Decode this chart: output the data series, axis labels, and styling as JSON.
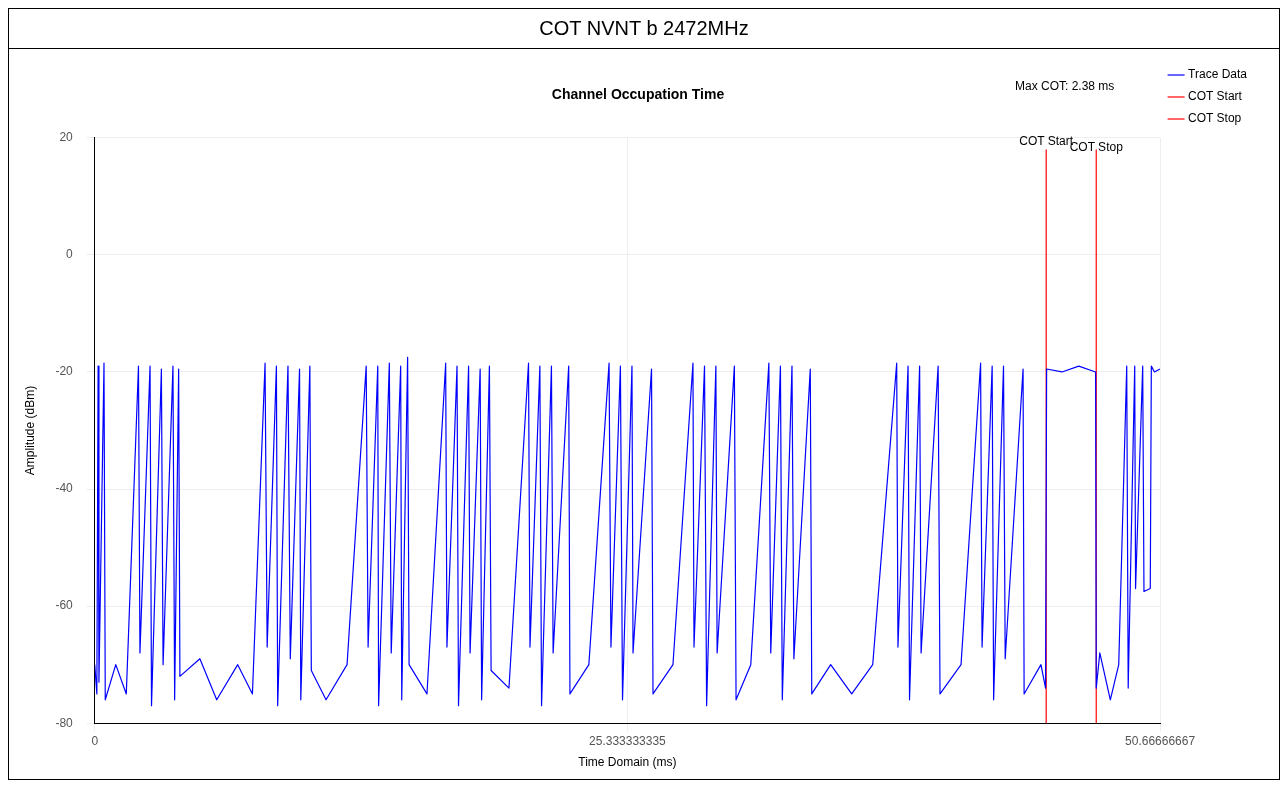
{
  "chart_data": {
    "type": "line",
    "title": "COT NVNT b 2472MHz",
    "subtitle": "Channel Occupation Time",
    "xlabel": "Time Domain (ms)",
    "ylabel": "Amplitude (dBm)",
    "xlim": [
      0,
      50.66666667
    ],
    "xticks": [
      0,
      25.333333335,
      50.66666667
    ],
    "ylim": [
      -80,
      20
    ],
    "yticks": [
      -80,
      -60,
      -40,
      -20,
      0,
      20
    ],
    "grid": true,
    "legend": "right",
    "marker": "none",
    "line_style": "solid",
    "series": [
      {
        "name": "Trace Data",
        "color": "#0000ff",
        "x": [
          0,
          0.1,
          0.16,
          0.2,
          0.44,
          0.5,
          1.0,
          1.5,
          2.08,
          2.15,
          2.63,
          2.7,
          3.17,
          3.25,
          3.72,
          3.8,
          3.99,
          4.05,
          5.0,
          5.8,
          6.8,
          7.5,
          8.1,
          8.2,
          8.64,
          8.7,
          9.19,
          9.3,
          9.74,
          9.8,
          10.23,
          10.3,
          11.0,
          12.0,
          12.91,
          13.0,
          13.46,
          13.5,
          14.01,
          14.1,
          14.55,
          14.6,
          14.88,
          14.95,
          15.8,
          16.69,
          16.75,
          17.23,
          17.3,
          17.78,
          17.85,
          18.33,
          18.4,
          18.77,
          18.85,
          19.7,
          20.63,
          20.7,
          21.17,
          21.25,
          21.72,
          21.8,
          22.54,
          22.6,
          23.5,
          24.46,
          24.55,
          25.0,
          25.1,
          25.55,
          25.6,
          26.48,
          26.55,
          27.5,
          28.45,
          28.5,
          29.0,
          29.1,
          29.54,
          29.6,
          30.42,
          30.5,
          31.2,
          32.06,
          32.15,
          32.61,
          32.7,
          33.16,
          33.25,
          34.03,
          34.1,
          35.0,
          36.0,
          37.0,
          38.14,
          38.2,
          38.68,
          38.75,
          39.23,
          39.3,
          40.11,
          40.2,
          41.2,
          42.13,
          42.2,
          42.68,
          42.75,
          43.22,
          43.3,
          44.15,
          44.2,
          45.0,
          45.22,
          45.27,
          46.0,
          46.8,
          47.6,
          47.63,
          47.8,
          48.3,
          48.7,
          49.08,
          49.15,
          49.46,
          49.5,
          49.84,
          49.9,
          50.2,
          50.25,
          50.4,
          50.66
        ],
        "values": [
          -70,
          -75,
          -19,
          -73,
          -18.5,
          -76,
          -70,
          -75,
          -19,
          -68,
          -19,
          -77,
          -19.5,
          -70,
          -19,
          -76,
          -19.5,
          -72,
          -69,
          -76,
          -70,
          -75,
          -18.5,
          -67,
          -19,
          -77,
          -19,
          -69,
          -19.5,
          -76,
          -19,
          -71,
          -76,
          -70,
          -19,
          -67,
          -19,
          -77,
          -18.5,
          -68,
          -19,
          -76,
          -17.5,
          -70,
          -75,
          -18.5,
          -67,
          -19,
          -77,
          -19,
          -68,
          -19.5,
          -76,
          -19,
          -71,
          -74,
          -18.5,
          -67,
          -19,
          -77,
          -19,
          -68,
          -19,
          -75,
          -70,
          -18.5,
          -67,
          -19,
          -76,
          -19,
          -68,
          -19.5,
          -75,
          -70,
          -18.5,
          -67,
          -19,
          -77,
          -19,
          -68,
          -19,
          -76,
          -70,
          -18.5,
          -68,
          -19,
          -76,
          -19,
          -69,
          -19.5,
          -75,
          -70,
          -75,
          -70,
          -18.5,
          -67,
          -19,
          -76,
          -19,
          -68,
          -19,
          -75,
          -70,
          -18.5,
          -67,
          -19,
          -76,
          -19,
          -69,
          -19.5,
          -75,
          -70,
          -74,
          -19.5,
          -20,
          -19,
          -20,
          -74,
          -68,
          -76,
          -70,
          -19,
          -74,
          -19,
          -57,
          -19,
          -57.5,
          -57,
          -19,
          -20,
          -19.5
        ]
      },
      {
        "name": "COT Start",
        "color": "#ff0000",
        "x": [
          45.25,
          45.25
        ],
        "values": [
          -80,
          18
        ]
      },
      {
        "name": "COT Stop",
        "color": "#ff0000",
        "x": [
          47.63,
          47.63
        ],
        "values": [
          -80,
          18
        ]
      }
    ],
    "annotations": [
      "Max COT: 2.38 ms",
      {
        "text": "COT Start",
        "x": 45.25,
        "y": 18
      },
      {
        "text": "COT Stop",
        "x": 47.63,
        "y": 17
      }
    ]
  }
}
